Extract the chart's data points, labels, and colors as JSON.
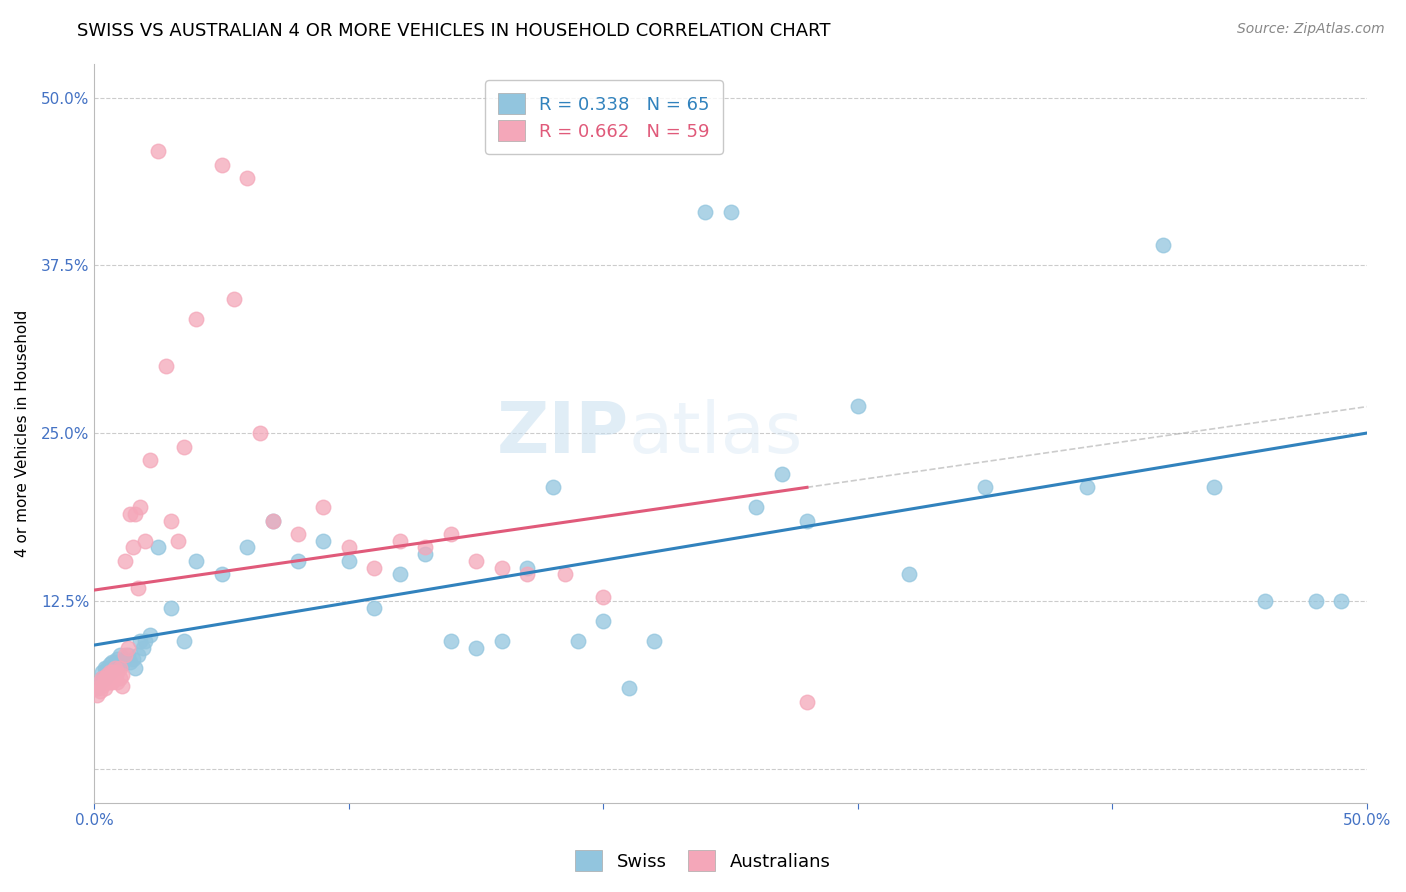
{
  "title": "SWISS VS AUSTRALIAN 4 OR MORE VEHICLES IN HOUSEHOLD CORRELATION CHART",
  "source": "Source: ZipAtlas.com",
  "ylabel": "4 or more Vehicles in Household",
  "watermark": "ZIPatlas",
  "xmin": 0.0,
  "xmax": 0.5,
  "ymin": -0.025,
  "ymax": 0.525,
  "yticks": [
    0.0,
    0.125,
    0.25,
    0.375,
    0.5
  ],
  "ytick_labels": [
    "",
    "12.5%",
    "25.0%",
    "37.5%",
    "50.0%"
  ],
  "xticks": [
    0.0,
    0.1,
    0.2,
    0.3,
    0.4,
    0.5
  ],
  "xtick_labels": [
    "0.0%",
    "",
    "",
    "",
    "",
    "50.0%"
  ],
  "swiss_color": "#92c5de",
  "australian_color": "#f4a7b9",
  "swiss_line_color": "#3182bd",
  "australian_line_color": "#e05a7a",
  "legend_swiss_label": "R = 0.338   N = 65",
  "legend_aus_label": "R = 0.662   N = 59",
  "swiss_x": [
    0.001,
    0.002,
    0.003,
    0.003,
    0.004,
    0.004,
    0.005,
    0.005,
    0.006,
    0.006,
    0.007,
    0.007,
    0.008,
    0.008,
    0.009,
    0.009,
    0.01,
    0.01,
    0.011,
    0.012,
    0.013,
    0.014,
    0.015,
    0.016,
    0.017,
    0.018,
    0.019,
    0.02,
    0.022,
    0.025,
    0.03,
    0.035,
    0.04,
    0.05,
    0.06,
    0.07,
    0.08,
    0.09,
    0.1,
    0.11,
    0.12,
    0.13,
    0.14,
    0.15,
    0.16,
    0.17,
    0.18,
    0.19,
    0.2,
    0.21,
    0.22,
    0.24,
    0.25,
    0.26,
    0.27,
    0.28,
    0.3,
    0.32,
    0.35,
    0.39,
    0.42,
    0.44,
    0.46,
    0.48,
    0.49
  ],
  "swiss_y": [
    0.06,
    0.065,
    0.068,
    0.072,
    0.068,
    0.075,
    0.07,
    0.075,
    0.072,
    0.078,
    0.075,
    0.08,
    0.075,
    0.08,
    0.078,
    0.082,
    0.08,
    0.085,
    0.078,
    0.082,
    0.085,
    0.08,
    0.082,
    0.075,
    0.085,
    0.095,
    0.09,
    0.095,
    0.1,
    0.165,
    0.12,
    0.095,
    0.155,
    0.145,
    0.165,
    0.185,
    0.155,
    0.17,
    0.155,
    0.12,
    0.145,
    0.16,
    0.095,
    0.09,
    0.095,
    0.15,
    0.21,
    0.095,
    0.11,
    0.06,
    0.095,
    0.415,
    0.415,
    0.195,
    0.22,
    0.185,
    0.27,
    0.145,
    0.21,
    0.21,
    0.39,
    0.21,
    0.125,
    0.125,
    0.125
  ],
  "australian_x": [
    0.001,
    0.001,
    0.002,
    0.002,
    0.003,
    0.003,
    0.004,
    0.004,
    0.005,
    0.005,
    0.005,
    0.006,
    0.006,
    0.006,
    0.007,
    0.007,
    0.007,
    0.008,
    0.008,
    0.009,
    0.009,
    0.01,
    0.01,
    0.011,
    0.011,
    0.012,
    0.012,
    0.013,
    0.014,
    0.015,
    0.016,
    0.017,
    0.018,
    0.02,
    0.022,
    0.025,
    0.028,
    0.03,
    0.033,
    0.035,
    0.04,
    0.05,
    0.055,
    0.06,
    0.065,
    0.07,
    0.08,
    0.09,
    0.1,
    0.11,
    0.12,
    0.13,
    0.14,
    0.15,
    0.16,
    0.17,
    0.185,
    0.2,
    0.28
  ],
  "australian_y": [
    0.06,
    0.055,
    0.058,
    0.065,
    0.062,
    0.068,
    0.06,
    0.068,
    0.065,
    0.07,
    0.068,
    0.065,
    0.072,
    0.068,
    0.065,
    0.072,
    0.07,
    0.068,
    0.075,
    0.065,
    0.072,
    0.068,
    0.075,
    0.062,
    0.07,
    0.085,
    0.155,
    0.09,
    0.19,
    0.165,
    0.19,
    0.135,
    0.195,
    0.17,
    0.23,
    0.46,
    0.3,
    0.185,
    0.17,
    0.24,
    0.335,
    0.45,
    0.35,
    0.44,
    0.25,
    0.185,
    0.175,
    0.195,
    0.165,
    0.15,
    0.17,
    0.165,
    0.175,
    0.155,
    0.15,
    0.145,
    0.145,
    0.128,
    0.05
  ],
  "title_fontsize": 13,
  "axis_label_fontsize": 11,
  "tick_fontsize": 11,
  "legend_fontsize": 13,
  "source_fontsize": 10,
  "grid_color": "#cccccc",
  "tick_color": "#4472c4",
  "background_color": "#ffffff"
}
